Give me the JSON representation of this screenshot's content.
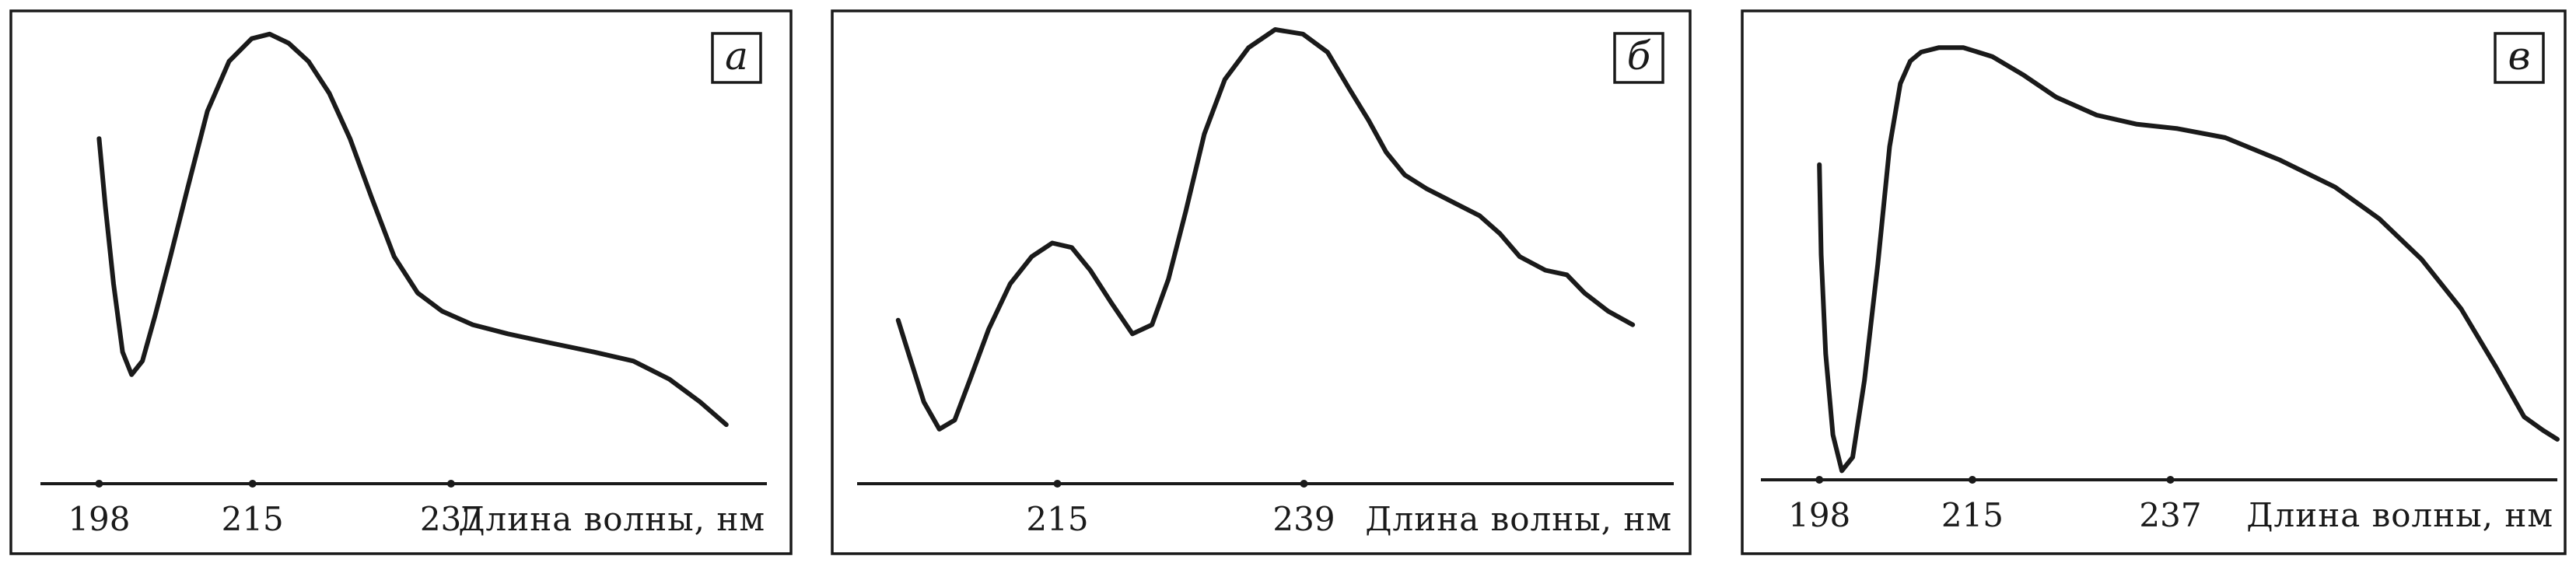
{
  "chart_data": [
    {
      "type": "line",
      "panel_label": "а",
      "xlabel": "Длина волны, нм",
      "ylabel": "",
      "xlim": [
        191.5,
        272
      ],
      "ylim": [
        0,
        1
      ],
      "x_ticks": [
        198,
        215,
        237
      ],
      "x_tick_labels": [
        "198",
        "215",
        "237"
      ],
      "grid": false,
      "series": [
        {
          "x": [
            198,
            198.7,
            199.6,
            200.6,
            201.6,
            202.8,
            204.2,
            205.9,
            207.8,
            210,
            212.4,
            214.9,
            216.9,
            219,
            221.2,
            223.5,
            225.8,
            228.2,
            230.7,
            233.3,
            236,
            239.4,
            243.3,
            248,
            252.8,
            257.2,
            261.2,
            264.6,
            267.5
          ],
          "y": [
            0.76,
            0.61,
            0.44,
            0.29,
            0.24,
            0.27,
            0.37,
            0.5,
            0.65,
            0.82,
            0.93,
            0.98,
            0.99,
            0.97,
            0.93,
            0.86,
            0.76,
            0.63,
            0.5,
            0.42,
            0.38,
            0.35,
            0.33,
            0.31,
            0.29,
            0.27,
            0.23,
            0.18,
            0.13
          ]
        }
      ]
    },
    {
      "type": "line",
      "panel_label": "б",
      "xlabel": "Длина волны, нм",
      "ylabel": "",
      "xlim": [
        195.5,
        275
      ],
      "ylim": [
        0,
        1
      ],
      "x_ticks": [
        215,
        239
      ],
      "x_tick_labels": [
        "215",
        "239"
      ],
      "grid": false,
      "series": [
        {
          "x": [
            199.5,
            200.6,
            202,
            203.5,
            205,
            206.5,
            208.3,
            210.4,
            212.5,
            214.5,
            216.4,
            218.2,
            220.2,
            222.3,
            224.2,
            225.8,
            227.5,
            229.3,
            231.3,
            233.6,
            236.2,
            238.9,
            241.3,
            243.4,
            245.3,
            247,
            248.8,
            250.9,
            253.5,
            256.1,
            258.1,
            260,
            262.5,
            264.6,
            266.3,
            268.6,
            271
          ],
          "y": [
            0.36,
            0.28,
            0.18,
            0.12,
            0.14,
            0.23,
            0.34,
            0.44,
            0.5,
            0.53,
            0.52,
            0.47,
            0.4,
            0.33,
            0.35,
            0.45,
            0.6,
            0.77,
            0.89,
            0.96,
            1.0,
            0.99,
            0.95,
            0.87,
            0.8,
            0.73,
            0.68,
            0.65,
            0.62,
            0.59,
            0.55,
            0.5,
            0.47,
            0.46,
            0.42,
            0.38,
            0.35
          ]
        }
      ]
    },
    {
      "type": "line",
      "panel_label": "в",
      "xlabel": "Длина волны, нм",
      "ylabel": "",
      "xlim": [
        191.5,
        280
      ],
      "ylim": [
        0,
        1
      ],
      "x_ticks": [
        198,
        215,
        237
      ],
      "x_tick_labels": [
        "198",
        "215",
        "237"
      ],
      "grid": false,
      "series": [
        {
          "x": [
            198,
            198.2,
            198.7,
            199.5,
            200.5,
            201.7,
            203,
            204.5,
            205.8,
            207,
            208.1,
            209.3,
            211.3,
            214,
            217.2,
            220.6,
            224.3,
            228.8,
            233.2,
            237.8,
            243.1,
            249.2,
            255.3,
            260.2,
            264.9,
            269.3,
            273.2,
            276.3,
            278.4,
            280
          ],
          "y": [
            0.7,
            0.5,
            0.28,
            0.1,
            0.02,
            0.05,
            0.22,
            0.48,
            0.74,
            0.88,
            0.93,
            0.95,
            0.96,
            0.96,
            0.94,
            0.9,
            0.85,
            0.81,
            0.79,
            0.78,
            0.76,
            0.71,
            0.65,
            0.58,
            0.49,
            0.38,
            0.25,
            0.14,
            0.11,
            0.09
          ]
        }
      ]
    }
  ]
}
